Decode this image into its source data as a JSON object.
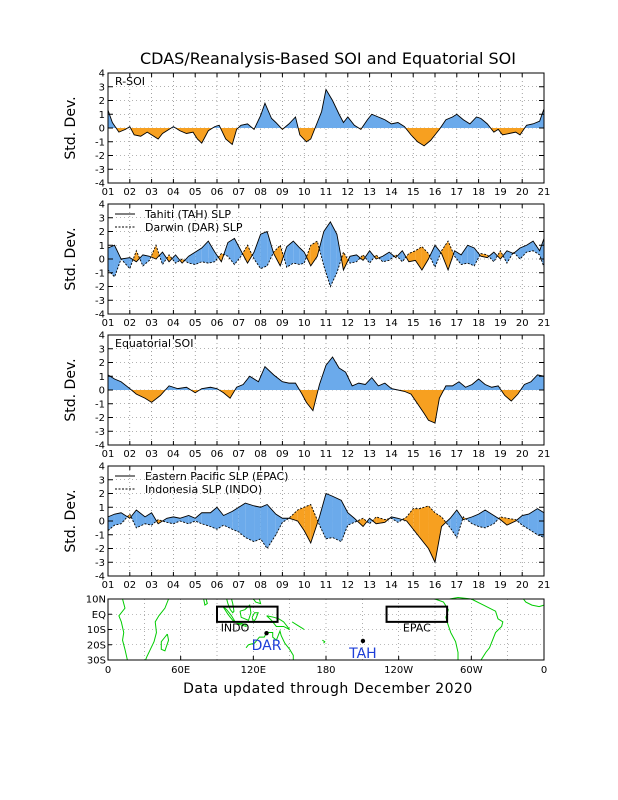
{
  "title": "CDAS/Reanalysis-Based SOI and Equatorial SOI",
  "footer": "Data updated through December 2020",
  "colors": {
    "positive": "#6baaeb",
    "negative": "#f7a020",
    "land": "#00cc00",
    "label_blue": "#1e3fd8"
  },
  "common": {
    "ylabel": "Std. Dev.",
    "yticks": [
      "4",
      "3",
      "2",
      "1",
      "0",
      "-1",
      "-2",
      "-3",
      "-4"
    ],
    "xticks": [
      "01",
      "02",
      "03",
      "04",
      "05",
      "06",
      "07",
      "08",
      "09",
      "10",
      "11",
      "12",
      "13",
      "14",
      "15",
      "16",
      "17",
      "18",
      "19",
      "20",
      "21"
    ]
  },
  "chart_data": [
    {
      "type": "area",
      "label": "R-SOI",
      "legend": [],
      "ylim": [
        -4,
        4
      ],
      "x": [
        2001.0,
        2001.2,
        2001.5,
        2001.8,
        2002.0,
        2002.2,
        2002.5,
        2002.8,
        2003.0,
        2003.3,
        2003.5,
        2003.8,
        2004.0,
        2004.3,
        2004.6,
        2004.9,
        2005.1,
        2005.3,
        2005.6,
        2005.9,
        2006.1,
        2006.4,
        2006.7,
        2006.9,
        2007.1,
        2007.4,
        2007.7,
        2008.0,
        2008.2,
        2008.5,
        2008.7,
        2009.0,
        2009.3,
        2009.6,
        2009.8,
        2010.1,
        2010.3,
        2010.6,
        2010.8,
        2011.0,
        2011.3,
        2011.6,
        2011.8,
        2012.0,
        2012.3,
        2012.6,
        2012.9,
        2013.1,
        2013.4,
        2013.7,
        2014.0,
        2014.3,
        2014.6,
        2014.9,
        2015.2,
        2015.5,
        2015.8,
        2016.0,
        2016.2,
        2016.5,
        2016.8,
        2017.0,
        2017.3,
        2017.6,
        2017.9,
        2018.1,
        2018.4,
        2018.7,
        2018.9,
        2019.1,
        2019.4,
        2019.7,
        2019.9,
        2020.2,
        2020.5,
        2020.8,
        2021.0
      ],
      "y": [
        1.3,
        0.4,
        -0.3,
        -0.1,
        0.1,
        -0.5,
        -0.6,
        -0.3,
        -0.5,
        -0.8,
        -0.4,
        -0.1,
        0.1,
        -0.2,
        -0.4,
        -0.3,
        -0.8,
        -1.1,
        -0.2,
        0.1,
        0.2,
        -0.8,
        -1.2,
        -0.1,
        0.2,
        0.3,
        -0.1,
        0.9,
        1.8,
        0.7,
        0.4,
        -0.1,
        0.3,
        0.8,
        -0.5,
        -1.0,
        -0.8,
        0.4,
        1.2,
        2.8,
        2.0,
        1.0,
        0.4,
        0.8,
        0.2,
        -0.1,
        0.6,
        1.0,
        0.8,
        0.6,
        0.3,
        0.4,
        0.1,
        -0.5,
        -1.0,
        -1.3,
        -0.9,
        -0.5,
        -0.1,
        0.6,
        0.8,
        1.0,
        0.6,
        0.3,
        0.8,
        0.7,
        0.3,
        -0.3,
        -0.1,
        -0.5,
        -0.4,
        -0.3,
        -0.5,
        0.2,
        0.3,
        0.5,
        1.4
      ]
    },
    {
      "type": "area",
      "label": "",
      "legend": [
        {
          "name": "Tahiti (TAH) SLP",
          "style": "solid"
        },
        {
          "name": "Darwin (DAR) SLP",
          "style": "dashed"
        }
      ],
      "ylim": [
        -4,
        4
      ],
      "x": [
        2001.0,
        2001.3,
        2001.6,
        2002.0,
        2002.3,
        2002.6,
        2002.9,
        2003.2,
        2003.5,
        2003.8,
        2004.1,
        2004.4,
        2004.7,
        2005.0,
        2005.3,
        2005.6,
        2005.9,
        2006.2,
        2006.5,
        2006.8,
        2007.1,
        2007.4,
        2007.7,
        2008.0,
        2008.3,
        2008.6,
        2008.9,
        2009.2,
        2009.5,
        2009.8,
        2010.0,
        2010.3,
        2010.6,
        2010.9,
        2011.2,
        2011.5,
        2011.8,
        2012.1,
        2012.4,
        2012.7,
        2013.0,
        2013.3,
        2013.6,
        2013.9,
        2014.2,
        2014.5,
        2014.8,
        2015.1,
        2015.4,
        2015.7,
        2016.0,
        2016.3,
        2016.6,
        2016.9,
        2017.2,
        2017.5,
        2017.8,
        2018.1,
        2018.4,
        2018.7,
        2019.0,
        2019.3,
        2019.6,
        2019.9,
        2020.2,
        2020.5,
        2020.8,
        2021.0
      ],
      "y1": [
        0.8,
        1.0,
        0.0,
        0.1,
        -0.2,
        0.3,
        0.2,
        0.0,
        0.5,
        -0.2,
        0.3,
        -0.3,
        0.2,
        0.5,
        0.8,
        1.3,
        0.5,
        -0.2,
        1.2,
        1.5,
        0.6,
        -0.3,
        0.5,
        1.8,
        2.0,
        0.4,
        -0.5,
        0.9,
        1.3,
        0.8,
        0.5,
        -0.5,
        0.2,
        2.0,
        2.7,
        1.8,
        -0.8,
        0.2,
        0.3,
        -0.1,
        0.6,
        0.0,
        0.2,
        0.5,
        0.1,
        0.6,
        -0.2,
        -0.1,
        -0.8,
        0.0,
        1.0,
        0.4,
        -0.8,
        0.6,
        0.3,
        1.0,
        0.8,
        0.2,
        0.1,
        0.5,
        0.0,
        0.6,
        0.4,
        0.8,
        1.0,
        1.3,
        0.6,
        1.5
      ],
      "y2": [
        -0.8,
        -1.3,
        0.0,
        -0.7,
        0.6,
        -0.5,
        -0.1,
        1.0,
        -0.4,
        0.3,
        -0.3,
        0.0,
        -0.3,
        -0.4,
        -0.2,
        -0.3,
        -0.2,
        0.4,
        0.2,
        -0.4,
        0.2,
        1.0,
        0.0,
        -0.7,
        -0.5,
        0.5,
        1.0,
        -0.6,
        -0.3,
        -0.4,
        -0.3,
        1.0,
        1.3,
        -0.5,
        -2.0,
        -1.0,
        0.5,
        -0.3,
        -0.2,
        0.3,
        -0.3,
        0.3,
        -0.2,
        -0.1,
        0.3,
        -0.2,
        0.4,
        0.6,
        0.9,
        0.4,
        -0.6,
        0.6,
        1.3,
        0.2,
        -0.4,
        -0.3,
        -0.5,
        0.4,
        0.3,
        -0.2,
        0.6,
        -0.3,
        0.5,
        0.0,
        0.5,
        0.6,
        0.3,
        -0.6
      ]
    },
    {
      "type": "area",
      "label": "Equatorial SOI",
      "legend": [],
      "ylim": [
        -4,
        4
      ],
      "x": [
        2001.0,
        2001.3,
        2001.6,
        2002.0,
        2002.3,
        2002.7,
        2003.0,
        2003.4,
        2003.8,
        2004.2,
        2004.6,
        2005.0,
        2005.3,
        2005.7,
        2006.0,
        2006.3,
        2006.6,
        2006.9,
        2007.2,
        2007.5,
        2007.9,
        2008.2,
        2008.6,
        2009.0,
        2009.3,
        2009.6,
        2009.9,
        2010.1,
        2010.4,
        2010.7,
        2011.0,
        2011.3,
        2011.6,
        2011.9,
        2012.2,
        2012.5,
        2012.8,
        2013.1,
        2013.4,
        2013.7,
        2014.0,
        2014.3,
        2014.6,
        2014.9,
        2015.2,
        2015.5,
        2015.7,
        2016.0,
        2016.2,
        2016.5,
        2016.8,
        2017.1,
        2017.4,
        2017.7,
        2018.0,
        2018.3,
        2018.6,
        2018.9,
        2019.2,
        2019.5,
        2019.8,
        2020.1,
        2020.4,
        2020.7,
        2021.0
      ],
      "y": [
        1.1,
        0.8,
        0.6,
        0.1,
        -0.3,
        -0.6,
        -0.9,
        -0.4,
        0.3,
        0.1,
        0.2,
        -0.2,
        0.1,
        0.2,
        0.1,
        -0.2,
        -0.6,
        0.2,
        0.4,
        1.0,
        0.6,
        1.7,
        1.1,
        0.6,
        0.5,
        0.5,
        -0.3,
        -0.9,
        -1.5,
        0.4,
        1.8,
        2.4,
        1.6,
        1.3,
        0.3,
        0.5,
        0.4,
        0.9,
        0.3,
        0.5,
        0.1,
        0.0,
        -0.1,
        -0.3,
        -1.0,
        -1.7,
        -2.2,
        -2.4,
        -0.6,
        0.3,
        0.3,
        0.6,
        0.2,
        0.4,
        0.8,
        0.4,
        0.2,
        0.3,
        -0.4,
        -0.8,
        -0.3,
        0.4,
        0.6,
        1.1,
        1.0
      ]
    },
    {
      "type": "area",
      "label": "",
      "legend": [
        {
          "name": "Eastern Pacific SLP (EPAC)",
          "style": "solid"
        },
        {
          "name": "Indonesia SLP (INDO)",
          "style": "dashed"
        }
      ],
      "ylim": [
        -4,
        4
      ],
      "x": [
        2001.0,
        2001.3,
        2001.6,
        2002.0,
        2002.3,
        2002.7,
        2003.0,
        2003.3,
        2003.7,
        2004.0,
        2004.3,
        2004.7,
        2005.0,
        2005.3,
        2005.7,
        2006.0,
        2006.3,
        2006.7,
        2007.0,
        2007.3,
        2007.7,
        2008.0,
        2008.3,
        2008.7,
        2009.0,
        2009.3,
        2009.7,
        2010.0,
        2010.3,
        2010.7,
        2011.0,
        2011.3,
        2011.7,
        2012.0,
        2012.3,
        2012.7,
        2013.0,
        2013.3,
        2013.7,
        2014.0,
        2014.3,
        2014.7,
        2015.0,
        2015.3,
        2015.7,
        2016.0,
        2016.3,
        2016.7,
        2017.0,
        2017.3,
        2017.7,
        2018.0,
        2018.3,
        2018.7,
        2019.0,
        2019.3,
        2019.7,
        2020.0,
        2020.3,
        2020.7,
        2021.0
      ],
      "y1": [
        0.3,
        0.5,
        0.6,
        0.2,
        0.8,
        0.3,
        0.6,
        -0.2,
        0.2,
        0.3,
        0.2,
        0.4,
        0.2,
        0.6,
        0.6,
        1.0,
        0.4,
        0.7,
        1.0,
        1.3,
        1.1,
        1.0,
        1.2,
        0.5,
        0.2,
        0.2,
        0.0,
        -0.7,
        -1.6,
        0.3,
        2.0,
        1.8,
        1.5,
        0.6,
        0.2,
        -0.4,
        0.2,
        -0.2,
        -0.1,
        0.3,
        0.2,
        0.0,
        -0.6,
        -1.2,
        -2.0,
        -3.0,
        -0.4,
        0.2,
        0.8,
        0.1,
        0.3,
        0.5,
        0.8,
        0.4,
        0.1,
        -0.3,
        0.0,
        0.4,
        0.5,
        0.9,
        0.6
      ],
      "y2": [
        -0.7,
        -0.3,
        -0.2,
        0.5,
        -0.5,
        -0.2,
        -0.3,
        0.1,
        -0.1,
        -0.2,
        0.0,
        -0.2,
        0.0,
        -0.2,
        -0.4,
        -0.6,
        -0.3,
        -0.6,
        -0.8,
        -1.2,
        -1.5,
        -1.3,
        -2.0,
        -1.0,
        -0.1,
        0.2,
        0.8,
        1.0,
        1.2,
        -0.3,
        -1.3,
        -1.2,
        -1.5,
        -0.3,
        -0.1,
        0.2,
        -0.2,
        0.3,
        0.1,
        0.2,
        -0.1,
        0.3,
        0.9,
        0.9,
        1.1,
        0.6,
        0.3,
        -0.5,
        -1.2,
        0.3,
        -0.2,
        -0.4,
        -0.5,
        -0.2,
        0.3,
        0.2,
        0.1,
        -0.3,
        -0.6,
        -1.0,
        -1.2
      ]
    }
  ],
  "map": {
    "yticks": [
      "10N",
      "EQ",
      "10S",
      "20S",
      "30S"
    ],
    "xticks": [
      "0",
      "60E",
      "120E",
      "180",
      "120W",
      "60W",
      "0"
    ],
    "regions": [
      {
        "name": "INDO",
        "lon_min": 90,
        "lon_max": 140,
        "lat_min": -5,
        "lat_max": 5
      },
      {
        "name": "EPAC",
        "lon_min": 230,
        "lon_max": 280,
        "lat_min": -5,
        "lat_max": 5
      }
    ],
    "stations": [
      {
        "name": "DAR",
        "lon": 130.9,
        "lat": -12.4
      },
      {
        "name": "TAH",
        "lon": 210.5,
        "lat": -17.5
      }
    ]
  }
}
